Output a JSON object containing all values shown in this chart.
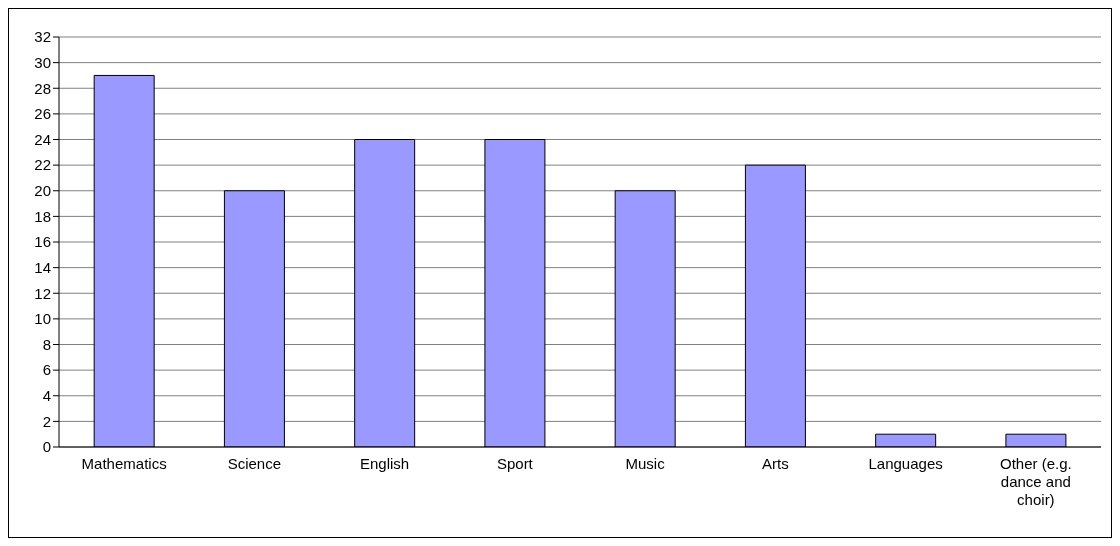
{
  "chart_data": {
    "type": "bar",
    "categories": [
      "Mathematics",
      "Science",
      "English",
      "Sport",
      "Music",
      "Arts",
      "Languages",
      "Other (e.g. dance and choir)"
    ],
    "values": [
      29,
      20,
      24,
      24,
      20,
      22,
      1,
      1
    ],
    "color": "#9999ff",
    "ylim": [
      0,
      32
    ],
    "yticks": [
      0,
      2,
      4,
      6,
      8,
      10,
      12,
      14,
      16,
      18,
      20,
      22,
      24,
      26,
      28,
      30,
      32
    ],
    "grid": "y",
    "legend": false
  }
}
